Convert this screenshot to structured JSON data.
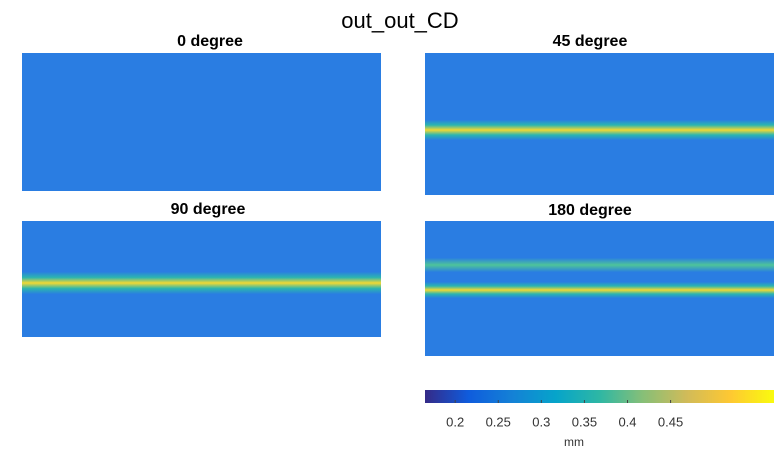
{
  "title": "out_out_CD",
  "panels": [
    {
      "title": "0 degree"
    },
    {
      "title": "45 degree"
    },
    {
      "title": "90 degree"
    },
    {
      "title": "180 degree"
    }
  ],
  "colorbar": {
    "label": "mm",
    "clim": [
      0.165,
      0.57
    ],
    "ticks": [
      0.2,
      0.25,
      0.3,
      0.35,
      0.4,
      0.45
    ],
    "colormap": [
      "#352a87",
      "#0f5cdd",
      "#1481d6",
      "#06a4ca",
      "#2eb7a4",
      "#87bf77",
      "#d1bb59",
      "#fec832",
      "#f9fb0e"
    ]
  }
}
